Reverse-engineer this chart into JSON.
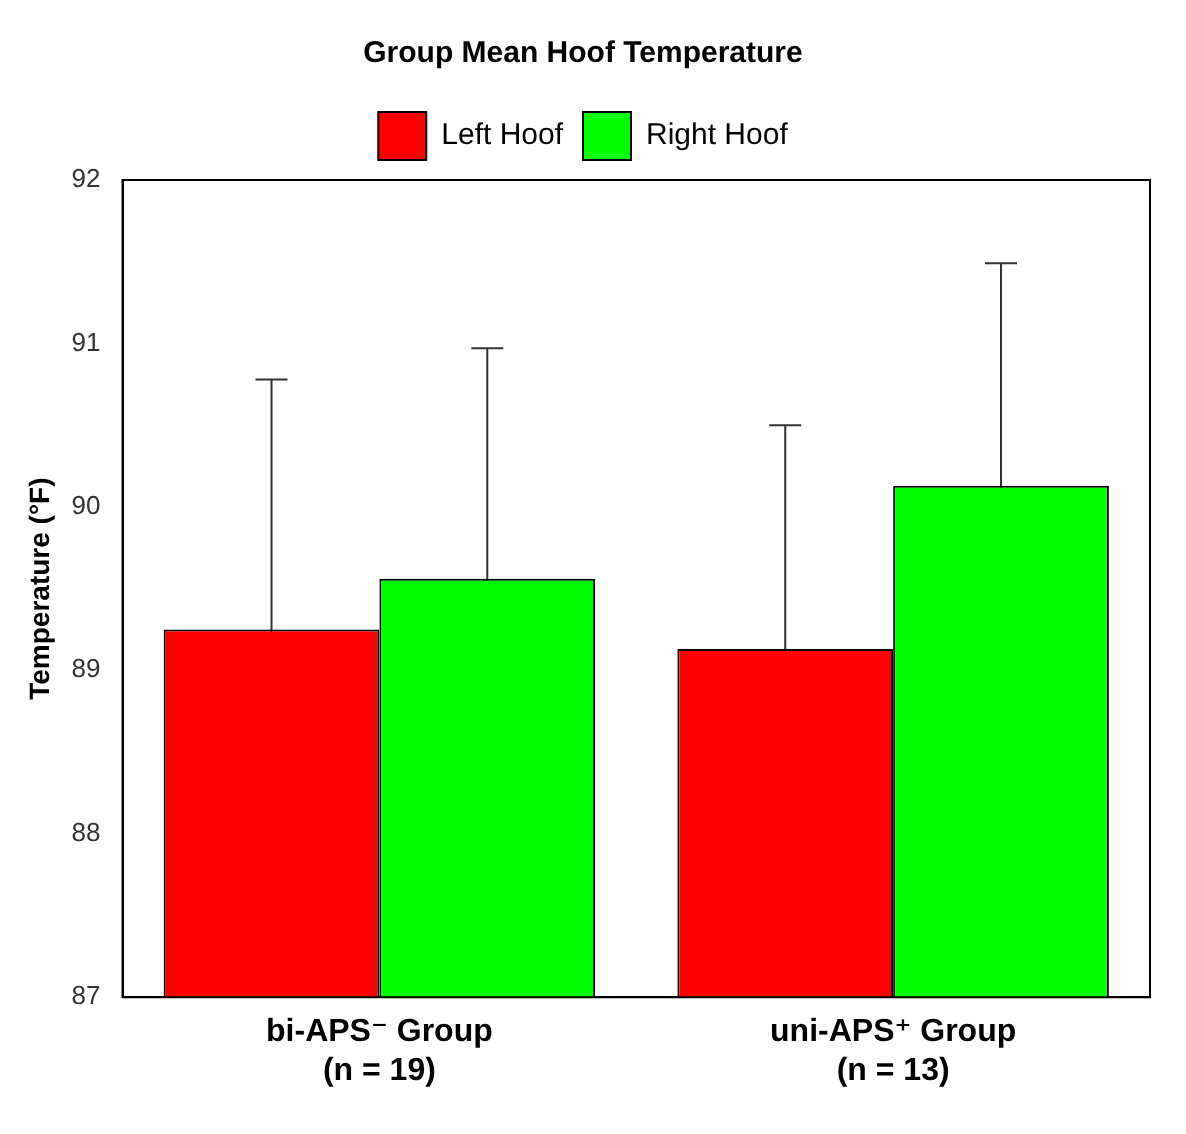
{
  "chart_data": {
    "type": "bar",
    "title": "Group Mean Hoof Temperature",
    "ylabel": "Temperature (°F)",
    "categories": [
      "bi-APS⁻ Group\n(n = 19)",
      "uni-APS⁺ Group\n(n = 13)"
    ],
    "series": [
      {
        "name": "Left Hoof",
        "color": "#ff0000",
        "values": [
          89.25,
          89.13
        ],
        "errors": [
          1.53,
          1.37
        ]
      },
      {
        "name": "Right Hoof",
        "color": "#00ff00",
        "values": [
          89.56,
          90.13
        ],
        "errors": [
          1.41,
          1.36
        ]
      }
    ],
    "ylim": [
      87,
      92
    ],
    "yticks": [
      87,
      88,
      89,
      90,
      91,
      92
    ],
    "grid": false,
    "legend": "top"
  }
}
